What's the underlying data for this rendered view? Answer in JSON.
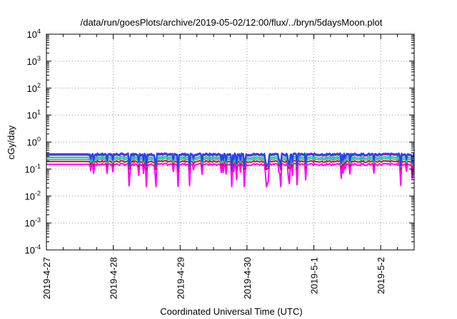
{
  "chart_data": {
    "type": "line",
    "title": "/data/run/goesPlots/archive/2019-05-02/12:00/flux/../bryn/5daysMoon.plot",
    "xlabel": "Coordinated Universal Time (UTC)",
    "ylabel": "cGy/day",
    "yscale": "log",
    "ylim": [
      0.0001,
      10000
    ],
    "xlim": [
      "2019-04-27",
      "2019-05-02 12:00"
    ],
    "grid": true,
    "x_ticks": [
      "2019-4-27",
      "2019-4-28",
      "2019-4-29",
      "2019-4-30",
      "2019-5-1",
      "2019-5-2"
    ],
    "y_ticks": [
      {
        "value": 0.0001,
        "base": "10",
        "exp": "-4"
      },
      {
        "value": 0.001,
        "base": "10",
        "exp": "-3"
      },
      {
        "value": 0.01,
        "base": "10",
        "exp": "-2"
      },
      {
        "value": 0.1,
        "base": "10",
        "exp": "-1"
      },
      {
        "value": 1,
        "base": "10",
        "exp": "0"
      },
      {
        "value": 10,
        "base": "10",
        "exp": "1"
      },
      {
        "value": 100,
        "base": "10",
        "exp": "2"
      },
      {
        "value": 1000,
        "base": "10",
        "exp": "3"
      },
      {
        "value": 10000,
        "base": "10",
        "exp": "4"
      }
    ],
    "data_start": "2019-04-27",
    "series": [
      {
        "color": "#ff00ff",
        "level": 0.15,
        "dip": 0.62
      },
      {
        "color": "#dd0044",
        "level": 0.19,
        "dip": 0.35
      },
      {
        "color": "#33cc66",
        "level": 0.23,
        "dip": 0.35
      },
      {
        "color": "#00cccc",
        "level": 0.27,
        "dip": 0.4
      },
      {
        "color": "#cc00cc",
        "level": 0.33,
        "dip": 0.45
      },
      {
        "color": "#2244ee",
        "level": 0.36,
        "dip": 0.45
      }
    ]
  }
}
